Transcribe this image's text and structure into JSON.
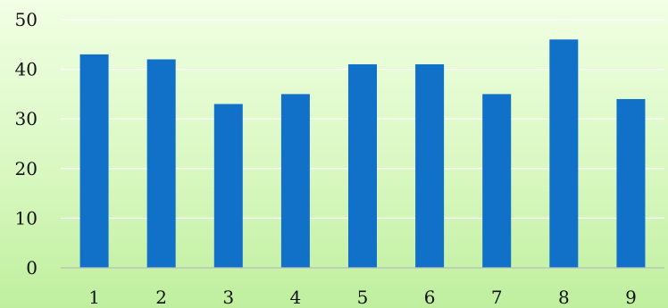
{
  "chart_data": {
    "type": "bar",
    "categories": [
      "1",
      "2",
      "3",
      "4",
      "5",
      "6",
      "7",
      "8",
      "9"
    ],
    "values": [
      43,
      42,
      33,
      35,
      41,
      41,
      35,
      46,
      34
    ],
    "yticks": [
      "0",
      "10",
      "20",
      "30",
      "40",
      "50"
    ],
    "ylim": [
      0,
      50
    ],
    "grid": true,
    "legend": "none",
    "bar_color": "#1170c8"
  }
}
